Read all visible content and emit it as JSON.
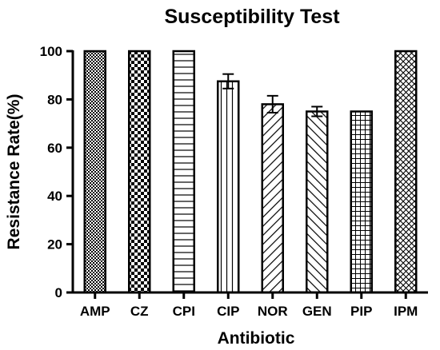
{
  "chart_data": {
    "type": "bar",
    "title": "Susceptibility Test",
    "xlabel": "Antibiotic",
    "ylabel": "Resistance Rate(%)",
    "ylim": [
      0,
      100
    ],
    "yticks": [
      0,
      20,
      40,
      60,
      80,
      100
    ],
    "categories": [
      "AMP",
      "CZ",
      "CPI",
      "CIP",
      "NOR",
      "GEN",
      "PIP",
      "IPM"
    ],
    "values": [
      100,
      100,
      100,
      87.5,
      78,
      75,
      75,
      100
    ],
    "error": [
      0,
      0,
      0,
      3,
      3.5,
      2,
      0,
      0
    ],
    "patterns": [
      "fine-checker",
      "checker",
      "horizontal-lines",
      "vertical-lines",
      "diagonal-up",
      "diagonal-down",
      "grid",
      "crosshatch"
    ],
    "colors": {
      "bar_stroke": "#000000",
      "fill": "#ffffff",
      "pattern": "#000000"
    },
    "grid": false,
    "legend": "none"
  }
}
